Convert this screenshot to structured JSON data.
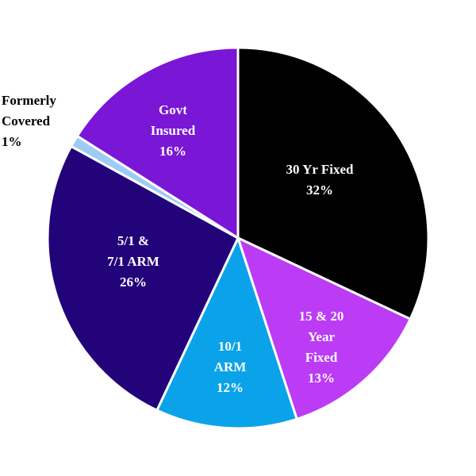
{
  "chart_data": {
    "type": "pie",
    "title": "",
    "start_angle_deg": 0,
    "direction": "clockwise",
    "slices": [
      {
        "key": "30yr",
        "lines": [
          "30 Yr Fixed",
          "32%"
        ],
        "value": 32,
        "color": "#000000",
        "text_color": "#ffffff",
        "label_pos": "inside"
      },
      {
        "key": "15_20",
        "lines": [
          "15 & 20",
          "Year",
          "Fixed",
          "13%"
        ],
        "value": 13,
        "color": "#bb3cf4",
        "text_color": "#ffffff",
        "label_pos": "inside"
      },
      {
        "key": "10_1",
        "lines": [
          "10/1",
          "ARM",
          "12%"
        ],
        "value": 12,
        "color": "#0aa3e9",
        "text_color": "#ffffff",
        "label_pos": "inside"
      },
      {
        "key": "5_7",
        "lines": [
          "5/1 &",
          "7/1 ARM",
          "26%"
        ],
        "value": 26,
        "color": "#22037a",
        "text_color": "#ffffff",
        "label_pos": "inside"
      },
      {
        "key": "former",
        "lines": [
          "Formerly",
          "Covered",
          "1%"
        ],
        "value": 1,
        "color": "#9ecbf5",
        "text_color": "#000000",
        "label_pos": "outside"
      },
      {
        "key": "govt",
        "lines": [
          "Govt",
          "Insured",
          "16%"
        ],
        "value": 16,
        "color": "#7a17d6",
        "text_color": "#ffffff",
        "label_pos": "inside"
      }
    ]
  }
}
